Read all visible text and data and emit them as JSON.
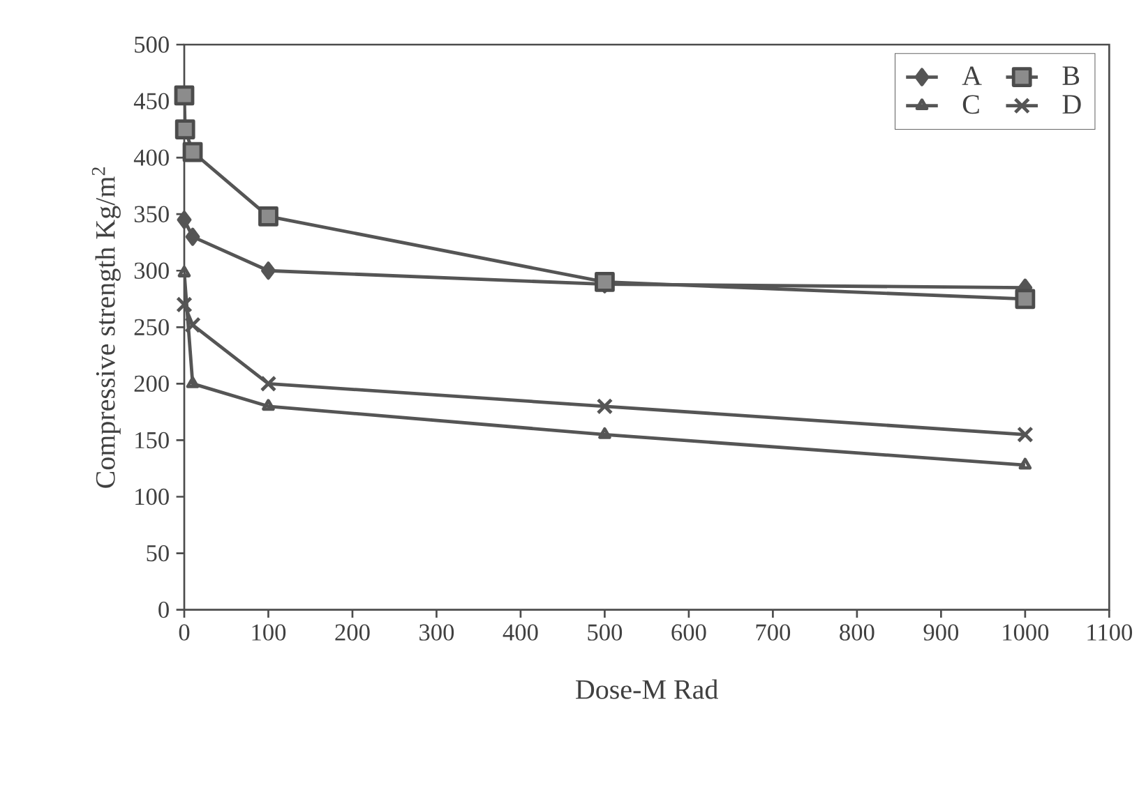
{
  "chart_data": {
    "type": "line",
    "xlabel": "Dose-M Rad",
    "ylabel": "Compressive strength Kg/m$^{2}$",
    "xlim": [
      0,
      1100
    ],
    "xticks": [
      0,
      100,
      200,
      300,
      400,
      500,
      600,
      700,
      800,
      900,
      1000,
      1100
    ],
    "ylim": [
      0,
      500
    ],
    "yticks": [
      0,
      50,
      100,
      150,
      200,
      250,
      300,
      350,
      400,
      450,
      500
    ],
    "grid": false,
    "legend": "top right",
    "series": [
      {
        "name": "A",
        "color": "#555555",
        "marker": "diamond",
        "x": [
          0,
          10,
          100,
          500,
          1000
        ],
        "values": [
          345,
          330,
          300,
          288,
          285
        ]
      },
      {
        "name": "B",
        "color": "#555555",
        "marker": "square",
        "x": [
          0,
          1,
          10,
          100,
          500,
          1000
        ],
        "values": [
          455,
          425,
          405,
          348,
          290,
          275
        ]
      },
      {
        "name": "C",
        "color": "#555555",
        "marker": "triangle",
        "x": [
          0,
          10,
          100,
          500,
          1000
        ],
        "values": [
          298,
          200,
          180,
          155,
          128
        ]
      },
      {
        "name": "D",
        "color": "#555555",
        "marker": "cross",
        "x": [
          0,
          10,
          100,
          500,
          1000
        ],
        "values": [
          270,
          252,
          200,
          180,
          155
        ]
      }
    ]
  }
}
